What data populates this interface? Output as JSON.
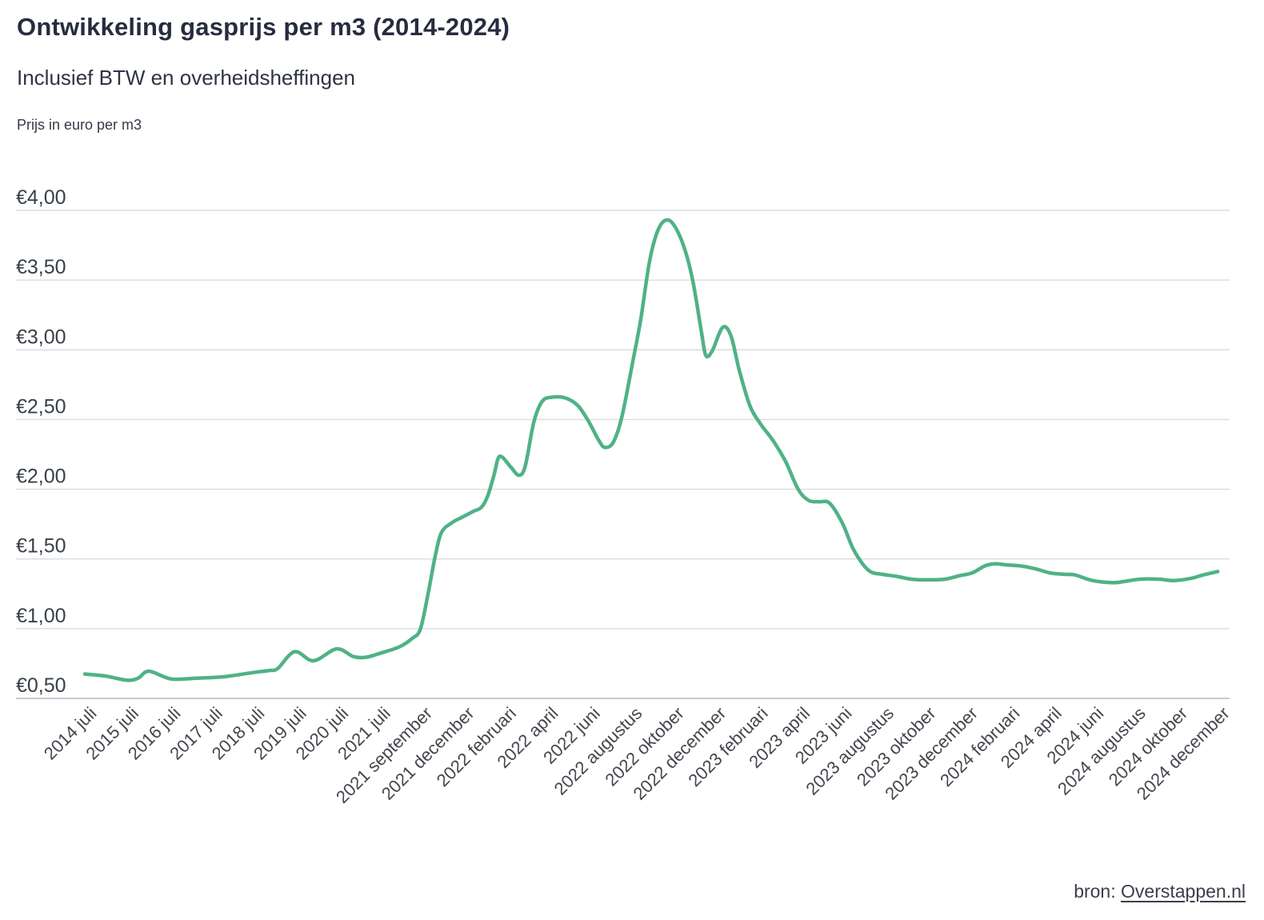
{
  "header": {
    "title": "Ontwikkeling gasprijs per m3 (2014-2024)",
    "subtitle": "Inclusief BTW en overheidsheffingen",
    "unit_note": "Prijs in euro per m3"
  },
  "source": {
    "prefix": "bron: ",
    "link_text": "Overstappen.nl"
  },
  "chart_data": {
    "type": "line",
    "title": "Ontwikkeling gasprijs per m3 (2014-2024)",
    "subtitle": "Inclusief BTW en overheidsheffingen",
    "ylabel": "Prijs in euro per m3",
    "xlabel": "",
    "ylim": [
      0.5,
      4.0
    ],
    "grid": "horizontal",
    "legend": "none",
    "line_color": "#4fb286",
    "gridline_color": "#dadce0",
    "axisline_color": "#c7cacd",
    "y_ticks": [
      {
        "value": 4.0,
        "label": "€4,00"
      },
      {
        "value": 3.5,
        "label": "€3,50"
      },
      {
        "value": 3.0,
        "label": "€3,00"
      },
      {
        "value": 2.5,
        "label": "€2,50"
      },
      {
        "value": 2.0,
        "label": "€2,00"
      },
      {
        "value": 1.5,
        "label": "€1,50"
      },
      {
        "value": 1.0,
        "label": "€1,00"
      },
      {
        "value": 0.5,
        "label": "€0,50"
      }
    ],
    "categories": [
      "2014 juli",
      "2015 juli",
      "2016 juli",
      "2017 juli",
      "2018 juli",
      "2019 juli",
      "2020 juli",
      "2021 juli",
      "2021 september",
      "2021 december",
      "2022 februari",
      "2022 april",
      "2022 juni",
      "2022 augustus",
      "2022 oktober",
      "2022 december",
      "2023 februari",
      "2023 april",
      "2023 juni",
      "2023 augustus",
      "2023 oktober",
      "2023 december",
      "2024 februari",
      "2024 april",
      "2024 juni",
      "2024 augustus",
      "2024 oktober",
      "2024 december"
    ],
    "values_at_ticks": [
      0.67,
      0.63,
      0.64,
      0.65,
      0.69,
      0.83,
      0.85,
      0.82,
      1.0,
      1.8,
      2.23,
      2.66,
      2.49,
      2.85,
      3.9,
      3.03,
      2.53,
      2.0,
      1.78,
      1.39,
      1.35,
      1.39,
      1.46,
      1.4,
      1.34,
      1.36,
      1.35,
      1.41
    ],
    "curve_points": [
      [
        0,
        0.675
      ],
      [
        0.5,
        0.66
      ],
      [
        1,
        0.63
      ],
      [
        1.27,
        0.645
      ],
      [
        1.53,
        0.695
      ],
      [
        2.05,
        0.64
      ],
      [
        2.65,
        0.645
      ],
      [
        3.3,
        0.655
      ],
      [
        4,
        0.685
      ],
      [
        4.4,
        0.7
      ],
      [
        4.6,
        0.715
      ],
      [
        5,
        0.835
      ],
      [
        5.45,
        0.77
      ],
      [
        6,
        0.855
      ],
      [
        6.4,
        0.8
      ],
      [
        6.7,
        0.795
      ],
      [
        7,
        0.82
      ],
      [
        7.5,
        0.87
      ],
      [
        7.8,
        0.93
      ],
      [
        8,
        1.0
      ],
      [
        8.2,
        1.28
      ],
      [
        8.35,
        1.52
      ],
      [
        8.5,
        1.69
      ],
      [
        8.75,
        1.76
      ],
      [
        9,
        1.8
      ],
      [
        9.25,
        1.84
      ],
      [
        9.45,
        1.87
      ],
      [
        9.6,
        1.95
      ],
      [
        9.75,
        2.1
      ],
      [
        9.85,
        2.22
      ],
      [
        9.95,
        2.23
      ],
      [
        10.15,
        2.16
      ],
      [
        10.35,
        2.1
      ],
      [
        10.5,
        2.17
      ],
      [
        10.7,
        2.48
      ],
      [
        10.9,
        2.63
      ],
      [
        11.15,
        2.66
      ],
      [
        11.45,
        2.655
      ],
      [
        11.75,
        2.6
      ],
      [
        12,
        2.49
      ],
      [
        12.25,
        2.35
      ],
      [
        12.4,
        2.3
      ],
      [
        12.6,
        2.34
      ],
      [
        12.8,
        2.52
      ],
      [
        13.05,
        2.9
      ],
      [
        13.25,
        3.22
      ],
      [
        13.45,
        3.62
      ],
      [
        13.65,
        3.85
      ],
      [
        13.85,
        3.93
      ],
      [
        14.05,
        3.89
      ],
      [
        14.3,
        3.72
      ],
      [
        14.5,
        3.48
      ],
      [
        14.7,
        3.12
      ],
      [
        14.8,
        2.96
      ],
      [
        14.95,
        2.99
      ],
      [
        15.2,
        3.16
      ],
      [
        15.4,
        3.1
      ],
      [
        15.6,
        2.85
      ],
      [
        15.85,
        2.6
      ],
      [
        16.1,
        2.47
      ],
      [
        16.4,
        2.35
      ],
      [
        16.7,
        2.2
      ],
      [
        17,
        2.0
      ],
      [
        17.25,
        1.92
      ],
      [
        17.5,
        1.91
      ],
      [
        17.75,
        1.9
      ],
      [
        18.05,
        1.76
      ],
      [
        18.3,
        1.58
      ],
      [
        18.55,
        1.46
      ],
      [
        18.75,
        1.405
      ],
      [
        19,
        1.39
      ],
      [
        19.35,
        1.375
      ],
      [
        19.7,
        1.355
      ],
      [
        20.1,
        1.35
      ],
      [
        20.5,
        1.355
      ],
      [
        20.85,
        1.38
      ],
      [
        21.15,
        1.4
      ],
      [
        21.45,
        1.45
      ],
      [
        21.7,
        1.465
      ],
      [
        21.95,
        1.458
      ],
      [
        22.3,
        1.45
      ],
      [
        22.65,
        1.43
      ],
      [
        23,
        1.4
      ],
      [
        23.35,
        1.39
      ],
      [
        23.6,
        1.385
      ],
      [
        23.95,
        1.35
      ],
      [
        24.25,
        1.335
      ],
      [
        24.55,
        1.33
      ],
      [
        24.8,
        1.34
      ],
      [
        25.15,
        1.355
      ],
      [
        25.6,
        1.355
      ],
      [
        25.95,
        1.345
      ],
      [
        26.35,
        1.36
      ],
      [
        26.65,
        1.385
      ],
      [
        27,
        1.41
      ]
    ]
  }
}
